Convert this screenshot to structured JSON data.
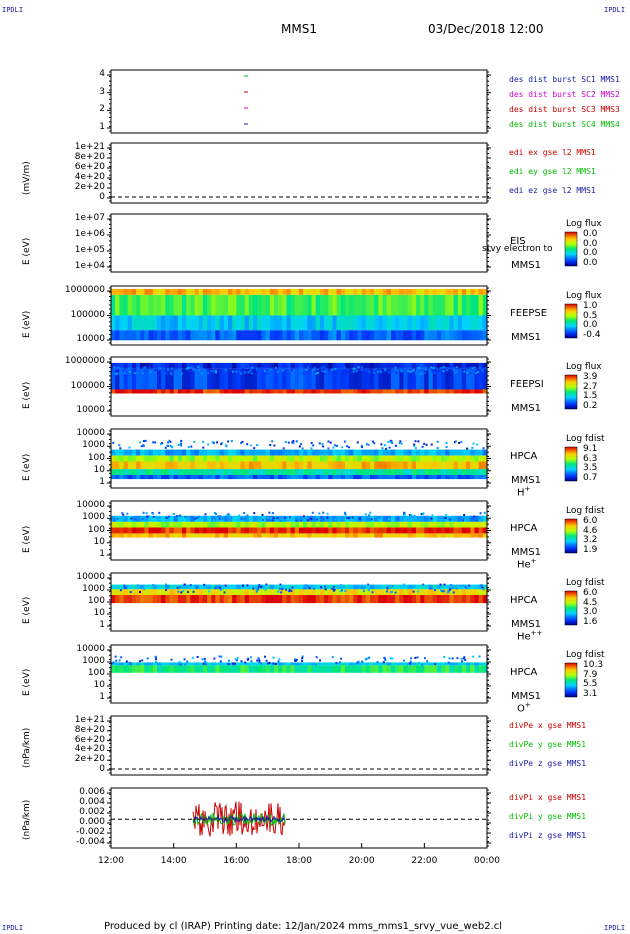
{
  "corners": {
    "tl": "IPDLI",
    "tr": "IPDLI",
    "bl": "IPDLI",
    "br": "IPDLI"
  },
  "header": {
    "mission": "MMS1",
    "date": "03/Dec/2018 12:00"
  },
  "footer": "Produced by cl (IRAP)   Printing date: 12/Jan/2024   mms_mms1_srvy_vue_web2.cl",
  "chart_data": {
    "type": "heatmap",
    "x_ticks": [
      "12:00",
      "14:00",
      "16:00",
      "18:00",
      "20:00",
      "22:00",
      "00:00"
    ],
    "panels": [
      {
        "id": "burst",
        "ylabel": "",
        "ticks": [
          "4",
          "3",
          "2",
          "1"
        ],
        "legend": [
          {
            "text": "des dist burst SC1 MMS1",
            "color": "#1a1aa0"
          },
          {
            "text": "des dist burst SC2 MMS2",
            "color": "#cc00cc"
          },
          {
            "text": "des dist burst SC3 MMS3",
            "color": "#cc0000"
          },
          {
            "text": "des dist burst SC4 MMS4",
            "color": "#00bb00"
          }
        ]
      },
      {
        "id": "edi",
        "ylabel": "(mV/m)",
        "ticks": [
          "1e+21",
          "8e+20",
          "6e+20",
          "4e+20",
          "2e+20",
          "0"
        ],
        "legend": [
          {
            "text": "edi ex gse l2 MMS1",
            "color": "#cc0000"
          },
          {
            "text": "edi ey gse l2 MMS1",
            "color": "#00bb00"
          },
          {
            "text": "edi ez gse l2 MMS1",
            "color": "#1a1aa0"
          }
        ]
      },
      {
        "id": "eis",
        "ylabel": "E (eV)",
        "ticks": [
          "1e+07",
          "1e+06",
          "1e+05",
          "1e+04"
        ],
        "labels": [
          "EIS",
          "MMS1"
        ],
        "overlap": "srvy electron to",
        "cb_title": "Log flux",
        "cb_vals": [
          "0.0",
          "0.0",
          "0.0",
          "0.0"
        ]
      },
      {
        "id": "feepse",
        "ylabel": "E (eV)",
        "ticks": [
          "1000000",
          "100000",
          "10000"
        ],
        "labels": [
          "FEEPSE",
          "MMS1"
        ],
        "cb_title": "Log flux",
        "cb_vals": [
          "1.0",
          "0.5",
          "0.0",
          "-0.4"
        ]
      },
      {
        "id": "feepsi",
        "ylabel": "E (eV)",
        "ticks": [
          "1000000",
          "100000",
          "10000"
        ],
        "labels": [
          "FEEPSI",
          "MMS1"
        ],
        "cb_title": "Log flux",
        "cb_vals": [
          "3.9",
          "2.7",
          "1.5",
          "0.2"
        ]
      },
      {
        "id": "hpca_h",
        "ylabel": "E (eV)",
        "ticks": [
          "10000",
          "1000",
          "100",
          "10",
          "1"
        ],
        "labels": [
          "HPCA",
          "MMS1"
        ],
        "species": "H",
        "charge": "+",
        "cb_title": "Log fdist",
        "cb_vals": [
          "9.1",
          "6.3",
          "3.5",
          "0.7"
        ]
      },
      {
        "id": "hpca_he",
        "ylabel": "E (eV)",
        "ticks": [
          "10000",
          "1000",
          "100",
          "10",
          "1"
        ],
        "labels": [
          "HPCA",
          "MMS1"
        ],
        "species": "He",
        "charge": "+",
        "cb_title": "Log fdist",
        "cb_vals": [
          "6.0",
          "4.6",
          "3.2",
          "1.9"
        ]
      },
      {
        "id": "hpca_hepp",
        "ylabel": "E (eV)",
        "ticks": [
          "10000",
          "1000",
          "100",
          "10",
          "1"
        ],
        "labels": [
          "HPCA",
          "MMS1"
        ],
        "species": "He",
        "charge": "++",
        "cb_title": "Log fdist",
        "cb_vals": [
          "6.0",
          "4.5",
          "3.0",
          "1.6"
        ]
      },
      {
        "id": "hpca_o",
        "ylabel": "E (eV)",
        "ticks": [
          "10000",
          "1000",
          "100",
          "10",
          "1"
        ],
        "labels": [
          "HPCA",
          "MMS1"
        ],
        "species": "O",
        "charge": "+",
        "cb_title": "Log fdist",
        "cb_vals": [
          "10.3",
          "7.9",
          "5.5",
          "3.1"
        ]
      },
      {
        "id": "divpe",
        "ylabel": "(nPa/km)",
        "ticks": [
          "1e+21",
          "8e+20",
          "6e+20",
          "4e+20",
          "2e+20",
          "0"
        ],
        "legend": [
          {
            "text": "divPe x gse MMS1",
            "color": "#cc0000"
          },
          {
            "text": "divPe y gse MMS1",
            "color": "#00bb00"
          },
          {
            "text": "divPe z gse MMS1",
            "color": "#1a1aa0"
          }
        ]
      },
      {
        "id": "divpi",
        "ylabel": "(nPa/km)",
        "ticks": [
          "0.006",
          "0.004",
          "0.002",
          "0.000",
          "-0.002",
          "-0.004"
        ],
        "legend": [
          {
            "text": "divPi x gse MMS1",
            "color": "#cc0000"
          },
          {
            "text": "divPi y gse MMS1",
            "color": "#00bb00"
          },
          {
            "text": "divPi z gse MMS1",
            "color": "#1a1aa0"
          }
        ]
      }
    ]
  }
}
